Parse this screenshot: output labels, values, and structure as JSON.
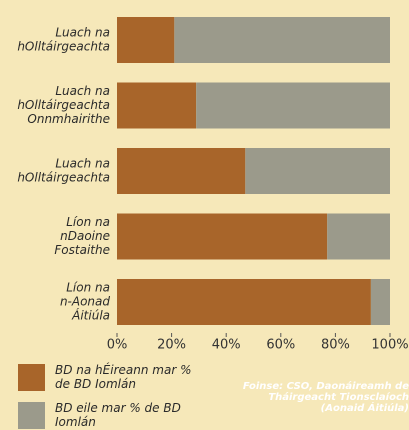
{
  "chart_data": {
    "type": "stacked-barh",
    "categories": [
      [
        "Luach na",
        "hOlltáirgeachta"
      ],
      [
        "Luach na",
        "hOlltáirgeachta",
        "Onnmhairithe"
      ],
      [
        "Luach na",
        "hOlltáirgeachta"
      ],
      [
        "Líon na",
        "nDaoine",
        "Fostaithe"
      ],
      [
        "Líon na",
        "n-Aonad",
        "Áitiúla"
      ]
    ],
    "series": [
      {
        "name": "BD na hÉireann mar % de BD Iomlán",
        "color": "#a8652a",
        "values": [
          21,
          29,
          47,
          77,
          93
        ]
      },
      {
        "name": "BD eile mar % de BD Iomlán",
        "color": "#9b9a8b",
        "values": [
          79,
          71,
          53,
          23,
          7
        ]
      }
    ],
    "xlim": [
      0,
      100
    ],
    "xticks": [
      {
        "value": 0,
        "label": "0%"
      },
      {
        "value": 20,
        "label": "20%"
      },
      {
        "value": 40,
        "label": "40%"
      },
      {
        "value": 60,
        "label": "60%"
      },
      {
        "value": 80,
        "label": "80%"
      },
      {
        "value": 100,
        "label": "100%"
      }
    ],
    "source": "Foinse: CSO, Daonáireamh de Tháirgeacht Tionsclaíoch (Aonaid Áitiúla)"
  }
}
